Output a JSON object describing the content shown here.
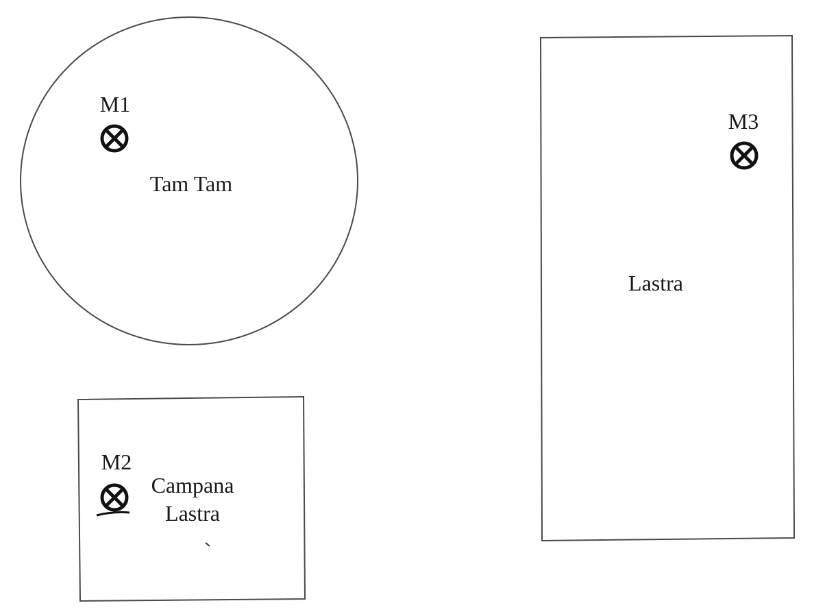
{
  "instruments": {
    "tam_tam": {
      "label": "Tam Tam"
    },
    "campana_lastra": {
      "label_line1": "Campana",
      "label_line2": "Lastra"
    },
    "lastra": {
      "label": "Lastra"
    }
  },
  "microphones": [
    {
      "label": "M1",
      "icon": "crossed-circle-icon"
    },
    {
      "label": "M2",
      "icon": "crossed-circle-icon"
    },
    {
      "label": "M3",
      "icon": "crossed-circle-icon"
    }
  ],
  "colors": {
    "outline": "#4a4a4a",
    "marker": "#111111",
    "text": "#1a1a1a",
    "background": "#ffffff"
  }
}
